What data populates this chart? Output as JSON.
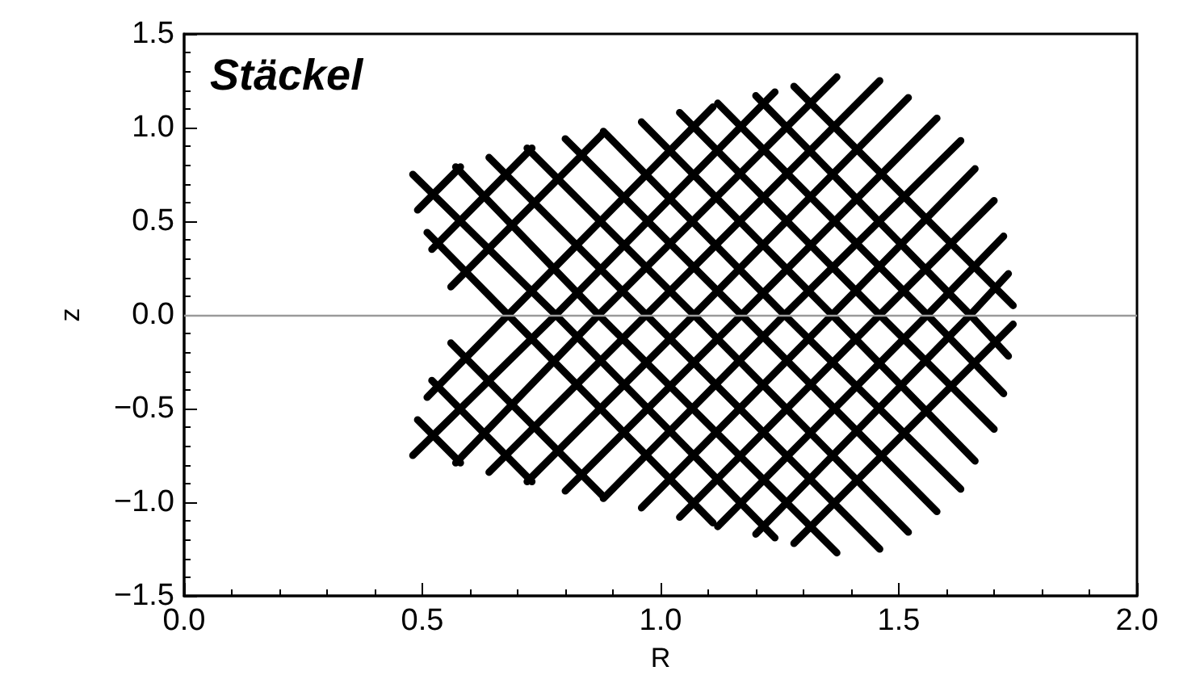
{
  "chart_data": {
    "type": "line",
    "title": "Stäckel",
    "xlabel": "R",
    "ylabel": "z",
    "xlim": [
      0,
      2
    ],
    "xticks": [
      {
        "value": 0,
        "label": "0.0"
      },
      {
        "value": 0.5,
        "label": "0.5"
      },
      {
        "value": 1,
        "label": "1.0"
      },
      {
        "value": 1.5,
        "label": "1.5"
      },
      {
        "value": 2,
        "label": "2.0"
      }
    ],
    "ylim": [
      -1.5,
      1.5
    ],
    "yticks": [
      {
        "value": -1.5,
        "label": "−1.5"
      },
      {
        "value": -1,
        "label": "−1.0"
      },
      {
        "value": -0.5,
        "label": "−0.5"
      },
      {
        "value": 0,
        "label": "0.0"
      },
      {
        "value": 0.5,
        "label": "0.5"
      },
      {
        "value": 1,
        "label": "1.0"
      },
      {
        "value": 1.5,
        "label": "1.5"
      }
    ],
    "grid": false,
    "marker": "none",
    "line_style": "solid",
    "ref_lines": [
      {
        "axis": "y",
        "value": 0,
        "color": "#9a9a9a"
      }
    ],
    "series": [
      {
        "color": "#000000",
        "x": [
          0.51,
          0.68,
          1.11
        ],
        "values": [
          0.44,
          0,
          -1.11
        ]
      },
      {
        "color": "#000000",
        "x": [
          0.48,
          0.78,
          1.24
        ],
        "values": [
          0.75,
          0,
          -1.19
        ]
      },
      {
        "color": "#000000",
        "x": [
          0.57,
          0.87,
          1.37
        ],
        "values": [
          0.79,
          0,
          -1.27
        ]
      },
      {
        "color": "#000000",
        "x": [
          0.64,
          0.97,
          1.46
        ],
        "values": [
          0.84,
          0,
          -1.25
        ]
      },
      {
        "color": "#000000",
        "x": [
          0.72,
          1.07,
          1.52
        ],
        "values": [
          0.89,
          0,
          -1.16
        ]
      },
      {
        "color": "#000000",
        "x": [
          0.8,
          1.17,
          1.58
        ],
        "values": [
          0.94,
          0,
          -1.05
        ]
      },
      {
        "color": "#000000",
        "x": [
          0.88,
          1.26,
          1.63
        ],
        "values": [
          0.98,
          0,
          -0.93
        ]
      },
      {
        "color": "#000000",
        "x": [
          0.96,
          1.36,
          1.66
        ],
        "values": [
          1.03,
          0,
          -0.78
        ]
      },
      {
        "color": "#000000",
        "x": [
          1.04,
          1.46,
          1.7
        ],
        "values": [
          1.08,
          0,
          -0.61
        ]
      },
      {
        "color": "#000000",
        "x": [
          1.12,
          1.56,
          1.72
        ],
        "values": [
          1.13,
          0,
          -0.42
        ]
      },
      {
        "color": "#000000",
        "x": [
          1.2,
          1.65,
          1.73
        ],
        "values": [
          1.17,
          0,
          -0.22
        ]
      },
      {
        "color": "#000000",
        "x": [
          1.28,
          1.74
        ],
        "values": [
          1.22,
          0.05
        ]
      },
      {
        "color": "#000000",
        "x": [
          0.56,
          0.88
        ],
        "values": [
          -0.15,
          -0.97
        ]
      },
      {
        "color": "#000000",
        "x": [
          0.52,
          0.73
        ],
        "values": [
          -0.35,
          -0.89
        ]
      },
      {
        "color": "#000000",
        "x": [
          0.49,
          0.58
        ],
        "values": [
          -0.56,
          -0.79
        ]
      },
      {
        "color": "#000000",
        "x": [
          0.51,
          0.68,
          1.11
        ],
        "values": [
          -0.44,
          0,
          1.11
        ]
      },
      {
        "color": "#000000",
        "x": [
          0.48,
          0.78,
          1.24
        ],
        "values": [
          -0.75,
          0,
          1.19
        ]
      },
      {
        "color": "#000000",
        "x": [
          0.57,
          0.87,
          1.37
        ],
        "values": [
          -0.79,
          0,
          1.27
        ]
      },
      {
        "color": "#000000",
        "x": [
          0.64,
          0.97,
          1.46
        ],
        "values": [
          -0.84,
          0,
          1.25
        ]
      },
      {
        "color": "#000000",
        "x": [
          0.72,
          1.07,
          1.52
        ],
        "values": [
          -0.89,
          0,
          1.16
        ]
      },
      {
        "color": "#000000",
        "x": [
          0.8,
          1.17,
          1.58
        ],
        "values": [
          -0.94,
          0,
          1.05
        ]
      },
      {
        "color": "#000000",
        "x": [
          0.88,
          1.26,
          1.63
        ],
        "values": [
          -0.98,
          0,
          0.93
        ]
      },
      {
        "color": "#000000",
        "x": [
          0.96,
          1.36,
          1.66
        ],
        "values": [
          -1.03,
          0,
          0.78
        ]
      },
      {
        "color": "#000000",
        "x": [
          1.04,
          1.46,
          1.7
        ],
        "values": [
          -1.08,
          0,
          0.61
        ]
      },
      {
        "color": "#000000",
        "x": [
          1.12,
          1.56,
          1.72
        ],
        "values": [
          -1.13,
          0,
          0.42
        ]
      },
      {
        "color": "#000000",
        "x": [
          1.2,
          1.65,
          1.73
        ],
        "values": [
          -1.17,
          0,
          0.22
        ]
      },
      {
        "color": "#000000",
        "x": [
          1.28,
          1.74
        ],
        "values": [
          -1.22,
          -0.05
        ]
      },
      {
        "color": "#000000",
        "x": [
          0.56,
          0.88
        ],
        "values": [
          0.15,
          0.97
        ]
      },
      {
        "color": "#000000",
        "x": [
          0.52,
          0.73
        ],
        "values": [
          0.35,
          0.89
        ]
      },
      {
        "color": "#000000",
        "x": [
          0.49,
          0.58
        ],
        "values": [
          0.56,
          0.79
        ]
      }
    ]
  }
}
